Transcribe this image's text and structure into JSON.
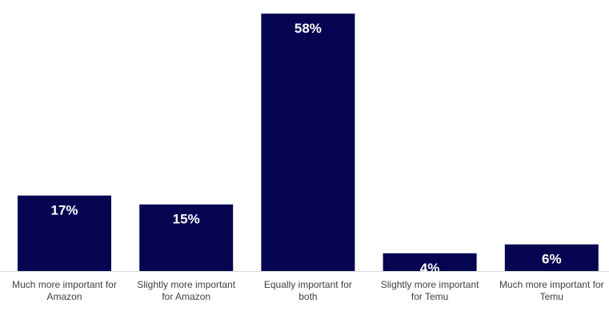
{
  "chart_data": {
    "type": "bar",
    "categories": [
      "Much more important for Amazon",
      "Slightly more important for Amazon",
      "Equally important for both",
      "Slightly more important for Temu",
      "Much more important for Temu"
    ],
    "category_lines": [
      [
        "Much more important for",
        "Amazon"
      ],
      [
        "Slightly more important",
        "for Amazon"
      ],
      [
        "Equally important for",
        "both"
      ],
      [
        "Slightly more important",
        "for Temu"
      ],
      [
        "Much more important for",
        "Temu"
      ]
    ],
    "values": [
      17,
      15,
      58,
      4,
      6
    ],
    "value_labels": [
      "17%",
      "15%",
      "58%",
      "4%",
      "6%"
    ],
    "ylim": [
      0,
      58
    ],
    "bar_color": "#050551",
    "label_color": "#ffffff",
    "grid": false,
    "legend": "none"
  }
}
